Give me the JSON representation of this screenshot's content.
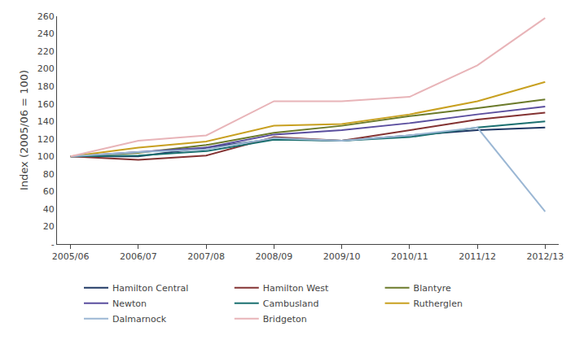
{
  "chart_data": {
    "type": "line",
    "categories": [
      "2005/06",
      "2006/07",
      "2007/08",
      "2008/09",
      "2009/10",
      "2010/11",
      "2011/12",
      "2012/13"
    ],
    "series": [
      {
        "name": "Hamilton Central",
        "color": "#1F3864",
        "values": [
          100,
          100,
          110,
          120,
          118,
          124,
          130,
          133
        ]
      },
      {
        "name": "Hamilton West",
        "color": "#833232",
        "values": [
          100,
          96,
          101,
          122,
          118,
          130,
          142,
          150
        ]
      },
      {
        "name": "Blantyre",
        "color": "#6B7A2A",
        "values": [
          100,
          104,
          113,
          127,
          135,
          146,
          155,
          165
        ]
      },
      {
        "name": "Newton",
        "color": "#5A4E9E",
        "values": [
          100,
          105,
          110,
          125,
          130,
          138,
          148,
          157
        ]
      },
      {
        "name": "Cambusland",
        "color": "#1B7070",
        "values": [
          100,
          101,
          106,
          119,
          118,
          122,
          133,
          140
        ]
      },
      {
        "name": "Rutherglen",
        "color": "#C8A020",
        "values": [
          100,
          110,
          117,
          135,
          137,
          148,
          163,
          185
        ]
      },
      {
        "name": "Dalmarnock",
        "color": "#9BB7D4",
        "values": [
          100,
          105,
          108,
          121,
          118,
          124,
          133,
          37
        ]
      },
      {
        "name": "Bridgeton",
        "color": "#E8B4B8",
        "values": [
          100,
          118,
          124,
          163,
          163,
          168,
          204,
          258
        ]
      }
    ],
    "y_label": "Index (2005/06 = 100)",
    "ylim": [
      0,
      260
    ],
    "yticks": [
      {
        "value": 0,
        "label": "-"
      },
      20,
      40,
      60,
      80,
      100,
      120,
      140,
      160,
      180,
      200,
      220,
      240,
      260
    ],
    "grid": false,
    "legend": "bottom"
  }
}
